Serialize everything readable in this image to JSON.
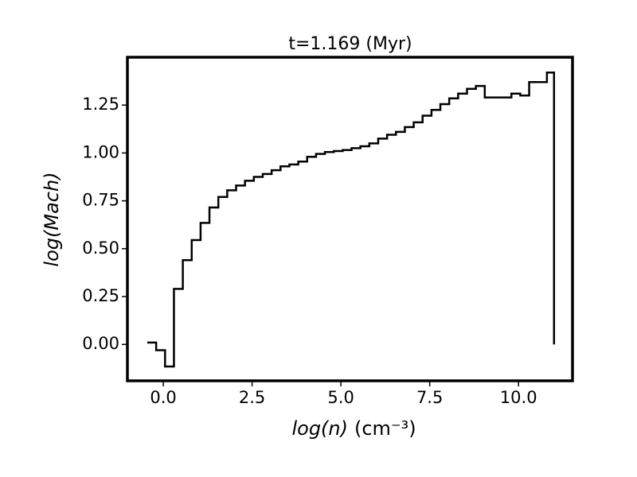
{
  "chart_data": {
    "type": "step",
    "title": "t=1.169 (Myr)",
    "x_label_var": "log(n)",
    "x_label_unit": "(cm⁻³)",
    "y_label": "log(Mach)",
    "x": [
      -0.45,
      -0.2,
      0.05,
      0.3,
      0.55,
      0.8,
      1.05,
      1.3,
      1.55,
      1.8,
      2.05,
      2.3,
      2.55,
      2.8,
      3.05,
      3.3,
      3.55,
      3.8,
      4.05,
      4.3,
      4.55,
      4.8,
      5.05,
      5.3,
      5.55,
      5.8,
      6.05,
      6.3,
      6.55,
      6.8,
      7.05,
      7.3,
      7.55,
      7.8,
      8.05,
      8.3,
      8.55,
      8.8,
      9.05,
      9.3,
      9.55,
      9.8,
      10.05,
      10.3,
      10.55,
      10.8,
      11.0
    ],
    "values": [
      0.01,
      -0.03,
      -0.115,
      0.29,
      0.44,
      0.545,
      0.635,
      0.715,
      0.77,
      0.805,
      0.83,
      0.855,
      0.875,
      0.89,
      0.91,
      0.93,
      0.94,
      0.955,
      0.98,
      0.995,
      1.005,
      1.01,
      1.015,
      1.025,
      1.035,
      1.05,
      1.075,
      1.095,
      1.11,
      1.135,
      1.16,
      1.195,
      1.225,
      1.255,
      1.285,
      1.31,
      1.335,
      1.35,
      1.29,
      1.29,
      1.29,
      1.31,
      1.3,
      1.37,
      1.37,
      1.42,
      0.0
    ],
    "color": "#000000",
    "xlim": [
      -1.01,
      11.52
    ],
    "ylim": [
      -0.19,
      1.5
    ],
    "xticks": [
      {
        "value": 0,
        "label": "0.0"
      },
      {
        "value": 2.5,
        "label": "2.5"
      },
      {
        "value": 5,
        "label": "5.0"
      },
      {
        "value": 7.5,
        "label": "7.5"
      },
      {
        "value": 10,
        "label": "10.0"
      }
    ],
    "yticks": [
      {
        "value": 0,
        "label": "0.00"
      },
      {
        "value": 0.25,
        "label": "0.25"
      },
      {
        "value": 0.5,
        "label": "0.50"
      },
      {
        "value": 0.75,
        "label": "0.75"
      },
      {
        "value": 1,
        "label": "1.00"
      },
      {
        "value": 1.25,
        "label": "1.25"
      }
    ],
    "grid": false
  }
}
